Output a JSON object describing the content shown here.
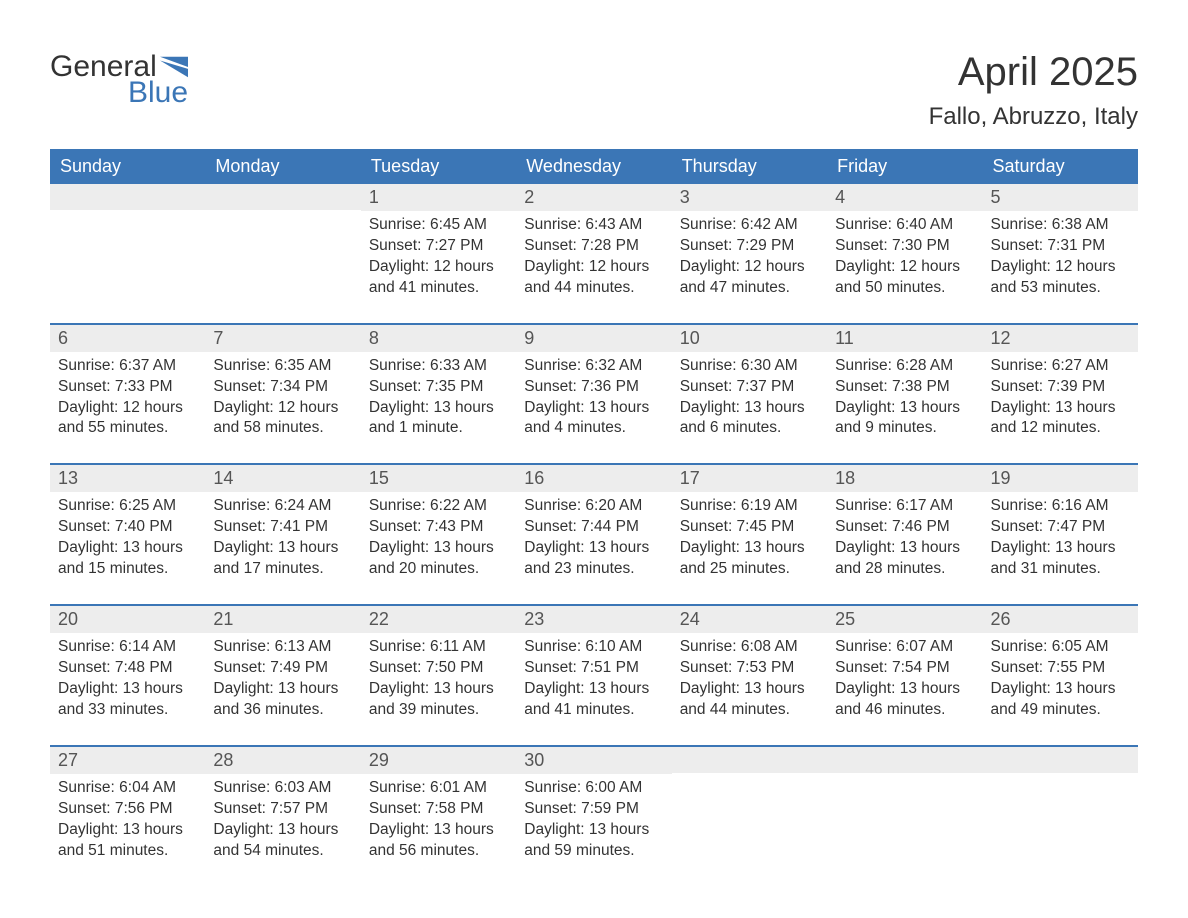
{
  "logo": {
    "word1": "General",
    "word2": "Blue"
  },
  "title": "April 2025",
  "subtitle": "Fallo, Abruzzo, Italy",
  "colors": {
    "accent": "#3b76b6",
    "header_text": "#ffffff",
    "daynum_bg": "#ededed",
    "text": "#333333"
  },
  "weekday_labels": [
    "Sunday",
    "Monday",
    "Tuesday",
    "Wednesday",
    "Thursday",
    "Friday",
    "Saturday"
  ],
  "weeks": [
    [
      {
        "n": null
      },
      {
        "n": null
      },
      {
        "n": 1,
        "sunrise": "6:45 AM",
        "sunset": "7:27 PM",
        "daylight": "12 hours and 41 minutes."
      },
      {
        "n": 2,
        "sunrise": "6:43 AM",
        "sunset": "7:28 PM",
        "daylight": "12 hours and 44 minutes."
      },
      {
        "n": 3,
        "sunrise": "6:42 AM",
        "sunset": "7:29 PM",
        "daylight": "12 hours and 47 minutes."
      },
      {
        "n": 4,
        "sunrise": "6:40 AM",
        "sunset": "7:30 PM",
        "daylight": "12 hours and 50 minutes."
      },
      {
        "n": 5,
        "sunrise": "6:38 AM",
        "sunset": "7:31 PM",
        "daylight": "12 hours and 53 minutes."
      }
    ],
    [
      {
        "n": 6,
        "sunrise": "6:37 AM",
        "sunset": "7:33 PM",
        "daylight": "12 hours and 55 minutes."
      },
      {
        "n": 7,
        "sunrise": "6:35 AM",
        "sunset": "7:34 PM",
        "daylight": "12 hours and 58 minutes."
      },
      {
        "n": 8,
        "sunrise": "6:33 AM",
        "sunset": "7:35 PM",
        "daylight": "13 hours and 1 minute."
      },
      {
        "n": 9,
        "sunrise": "6:32 AM",
        "sunset": "7:36 PM",
        "daylight": "13 hours and 4 minutes."
      },
      {
        "n": 10,
        "sunrise": "6:30 AM",
        "sunset": "7:37 PM",
        "daylight": "13 hours and 6 minutes."
      },
      {
        "n": 11,
        "sunrise": "6:28 AM",
        "sunset": "7:38 PM",
        "daylight": "13 hours and 9 minutes."
      },
      {
        "n": 12,
        "sunrise": "6:27 AM",
        "sunset": "7:39 PM",
        "daylight": "13 hours and 12 minutes."
      }
    ],
    [
      {
        "n": 13,
        "sunrise": "6:25 AM",
        "sunset": "7:40 PM",
        "daylight": "13 hours and 15 minutes."
      },
      {
        "n": 14,
        "sunrise": "6:24 AM",
        "sunset": "7:41 PM",
        "daylight": "13 hours and 17 minutes."
      },
      {
        "n": 15,
        "sunrise": "6:22 AM",
        "sunset": "7:43 PM",
        "daylight": "13 hours and 20 minutes."
      },
      {
        "n": 16,
        "sunrise": "6:20 AM",
        "sunset": "7:44 PM",
        "daylight": "13 hours and 23 minutes."
      },
      {
        "n": 17,
        "sunrise": "6:19 AM",
        "sunset": "7:45 PM",
        "daylight": "13 hours and 25 minutes."
      },
      {
        "n": 18,
        "sunrise": "6:17 AM",
        "sunset": "7:46 PM",
        "daylight": "13 hours and 28 minutes."
      },
      {
        "n": 19,
        "sunrise": "6:16 AM",
        "sunset": "7:47 PM",
        "daylight": "13 hours and 31 minutes."
      }
    ],
    [
      {
        "n": 20,
        "sunrise": "6:14 AM",
        "sunset": "7:48 PM",
        "daylight": "13 hours and 33 minutes."
      },
      {
        "n": 21,
        "sunrise": "6:13 AM",
        "sunset": "7:49 PM",
        "daylight": "13 hours and 36 minutes."
      },
      {
        "n": 22,
        "sunrise": "6:11 AM",
        "sunset": "7:50 PM",
        "daylight": "13 hours and 39 minutes."
      },
      {
        "n": 23,
        "sunrise": "6:10 AM",
        "sunset": "7:51 PM",
        "daylight": "13 hours and 41 minutes."
      },
      {
        "n": 24,
        "sunrise": "6:08 AM",
        "sunset": "7:53 PM",
        "daylight": "13 hours and 44 minutes."
      },
      {
        "n": 25,
        "sunrise": "6:07 AM",
        "sunset": "7:54 PM",
        "daylight": "13 hours and 46 minutes."
      },
      {
        "n": 26,
        "sunrise": "6:05 AM",
        "sunset": "7:55 PM",
        "daylight": "13 hours and 49 minutes."
      }
    ],
    [
      {
        "n": 27,
        "sunrise": "6:04 AM",
        "sunset": "7:56 PM",
        "daylight": "13 hours and 51 minutes."
      },
      {
        "n": 28,
        "sunrise": "6:03 AM",
        "sunset": "7:57 PM",
        "daylight": "13 hours and 54 minutes."
      },
      {
        "n": 29,
        "sunrise": "6:01 AM",
        "sunset": "7:58 PM",
        "daylight": "13 hours and 56 minutes."
      },
      {
        "n": 30,
        "sunrise": "6:00 AM",
        "sunset": "7:59 PM",
        "daylight": "13 hours and 59 minutes."
      },
      {
        "n": null
      },
      {
        "n": null
      },
      {
        "n": null
      }
    ]
  ],
  "labels": {
    "sunrise_prefix": "Sunrise: ",
    "sunset_prefix": "Sunset: ",
    "daylight_prefix": "Daylight: "
  }
}
